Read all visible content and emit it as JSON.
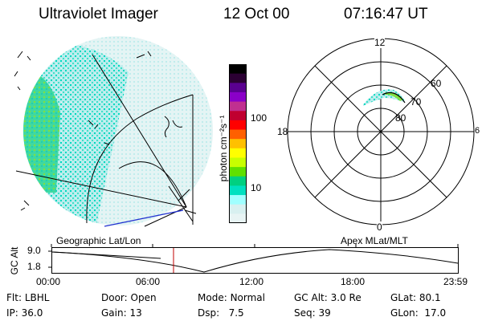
{
  "header": {
    "instrument": "Ultraviolet Imager",
    "date": "12 Oct 00",
    "time": "07:16:47 UT"
  },
  "colorbar": {
    "unit_label": "photon cm⁻²s⁻¹",
    "ticks": [
      "100",
      "10"
    ],
    "colors": [
      "#000000",
      "#2b0033",
      "#5a0090",
      "#8a00c8",
      "#c03090",
      "#c00030",
      "#ff0000",
      "#ff6000",
      "#ffc000",
      "#ffff00",
      "#c8ff00",
      "#60e000",
      "#00d080",
      "#00e0c0",
      "#a0ffff",
      "#d8f0f0",
      "#e8f4f4"
    ]
  },
  "polar_plot": {
    "mlt_labels": [
      "12",
      "18",
      "6",
      "0"
    ],
    "mlat_labels": [
      "60",
      "70",
      "80"
    ]
  },
  "map_labels": {
    "left": "Geographic Lat/Lon",
    "right": "Apex MLat/MLT"
  },
  "altitude_strip": {
    "axis_label": "GC Alt",
    "y_ticks": [
      "9.0",
      "1.8"
    ],
    "x_ticks": [
      "00:00",
      "06:00",
      "12:00",
      "18:00",
      "23:59"
    ]
  },
  "info": {
    "row1": [
      {
        "key": "Flt:",
        "val": "LBHL"
      },
      {
        "key": "Door:",
        "val": "Open"
      },
      {
        "key": "Mode:",
        "val": "Normal"
      },
      {
        "key": "GC Alt:",
        "val": "3.0 Re"
      },
      {
        "key": "GLat:",
        "val": "80.1"
      }
    ],
    "row2": [
      {
        "key": "IP:",
        "val": "36.0"
      },
      {
        "key": "Gain:",
        "val": "13"
      },
      {
        "key": "Dsp:",
        "val": "7.5"
      },
      {
        "key": "Seq:",
        "val": "39"
      },
      {
        "key": "GLon:",
        "val": "17.0"
      }
    ]
  }
}
